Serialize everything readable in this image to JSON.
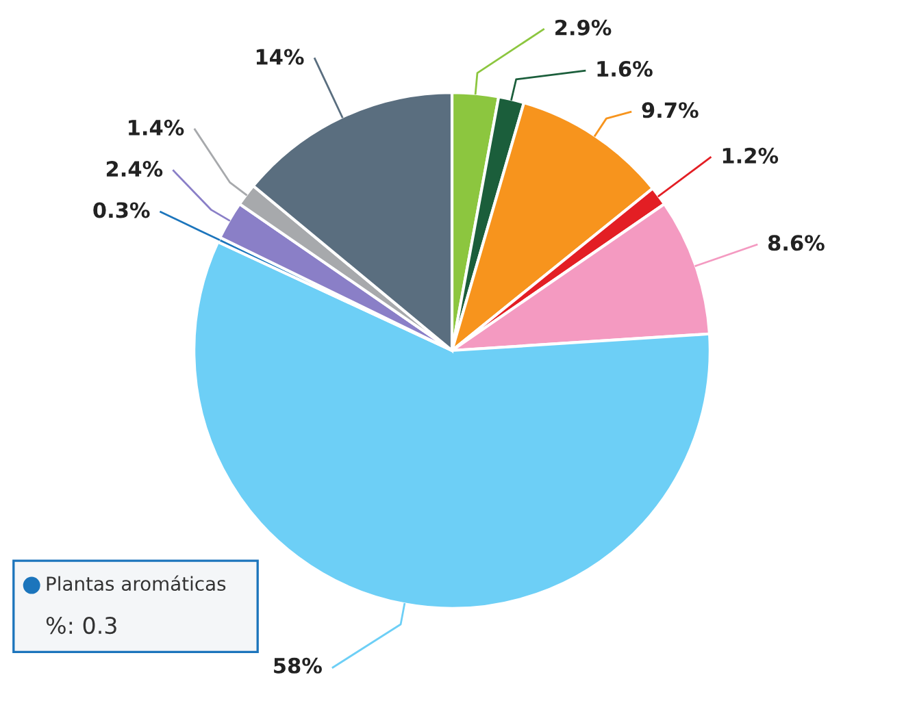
{
  "chart_data": {
    "type": "pie",
    "categories": [
      null,
      null,
      null,
      null,
      null,
      null,
      "Plantas aromáticas",
      null,
      null,
      null
    ],
    "values": [
      2.9,
      1.6,
      9.7,
      1.2,
      8.6,
      58,
      0.3,
      2.4,
      1.4,
      14
    ],
    "colors": [
      "#8cc63f",
      "#1b5e3b",
      "#f7941d",
      "#e31e24",
      "#f49ac1",
      "#6dcff6",
      "#1c75bc",
      "#8a7fc7",
      "#a7a9ac",
      "#5a6e7f"
    ],
    "value_labels": [
      "2.9%",
      "1.6%",
      "9.7%",
      "1.2%",
      "8.6%",
      "58%",
      "0.3%",
      "2.4%",
      "1.4%",
      "14%"
    ],
    "annotations": [
      "%: 0.3"
    ]
  }
}
